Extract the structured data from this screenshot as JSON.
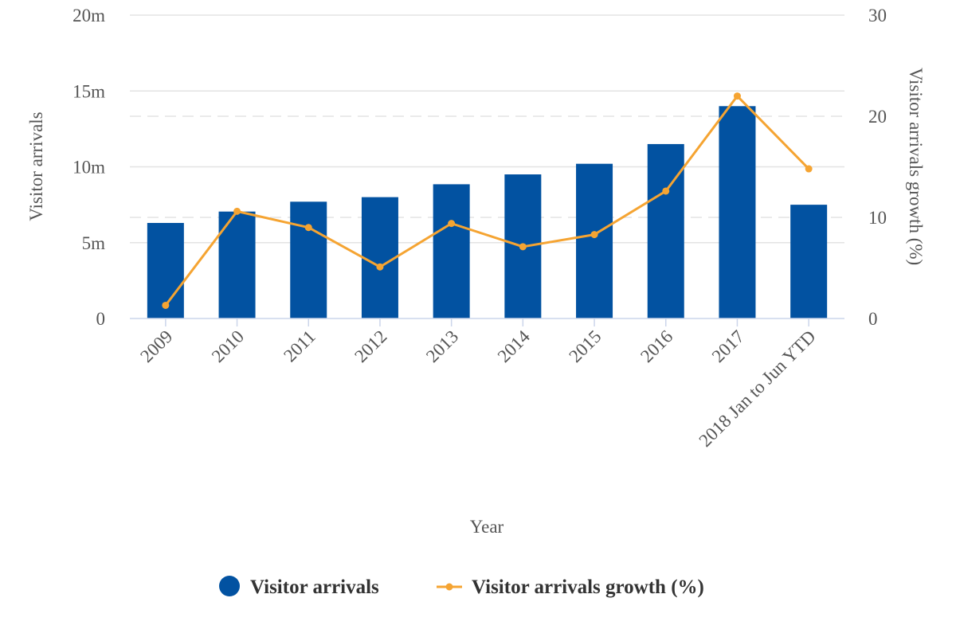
{
  "chart_data": {
    "type": "bar",
    "categories": [
      "2009",
      "2010",
      "2011",
      "2012",
      "2013",
      "2014",
      "2015",
      "2016",
      "2017",
      "2018 Jan to Jun YTD"
    ],
    "series": [
      {
        "name": "Visitor arrivals",
        "type": "bar",
        "axis": "left",
        "color": "#0252a1",
        "values": [
          6.3,
          7.05,
          7.7,
          8.0,
          8.85,
          9.5,
          10.2,
          11.5,
          14.0,
          7.5
        ]
      },
      {
        "name": "Visitor arrivals growth (%)",
        "type": "line",
        "axis": "right",
        "color": "#f5a432",
        "values": [
          1.3,
          10.6,
          9.0,
          5.1,
          9.4,
          7.1,
          8.3,
          12.6,
          22.0,
          14.8
        ]
      }
    ],
    "xlabel": "Year",
    "ylabel_left": "Visitor arrivals",
    "ylabel_right": "Visitor arrivals growth (%)",
    "ylim_left": [
      0,
      20
    ],
    "ylim_right": [
      0,
      30
    ],
    "left_ticks": [
      {
        "value": 0,
        "label": "0"
      },
      {
        "value": 5,
        "label": "5m"
      },
      {
        "value": 10,
        "label": "10m"
      },
      {
        "value": 15,
        "label": "15m"
      },
      {
        "value": 20,
        "label": "20m"
      }
    ],
    "right_ticks": [
      {
        "value": 0,
        "label": "0"
      },
      {
        "value": 10,
        "label": "10"
      },
      {
        "value": 20,
        "label": "20"
      },
      {
        "value": 30,
        "label": "30"
      }
    ],
    "grid": true,
    "legend": "bottom-center"
  }
}
